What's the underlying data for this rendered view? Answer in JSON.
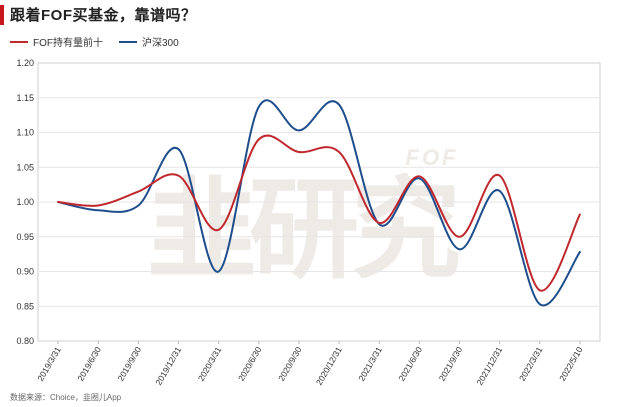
{
  "header": {
    "title": "跟着FOF买基金，靠谱吗？",
    "accent_color": "#c8161d"
  },
  "source": {
    "text": "数据来源：Choice，韭圈儿App"
  },
  "watermark": {
    "large": "韭研究",
    "small": "FOF"
  },
  "chart_data": {
    "type": "line",
    "categories": [
      "2019/3/31",
      "2019/6/30",
      "2019/9/30",
      "2019/12/31",
      "2020/3/31",
      "2020/6/30",
      "2020/9/30",
      "2020/12/31",
      "2021/3/31",
      "2021/6/30",
      "2021/9/30",
      "2021/12/31",
      "2022/3/31",
      "2022/5/10"
    ],
    "series": [
      {
        "name": "FOF持有量前十",
        "color": "#c0282e",
        "values": [
          1.0,
          0.995,
          1.015,
          1.038,
          0.96,
          1.09,
          1.072,
          1.072,
          0.97,
          1.037,
          0.95,
          1.038,
          0.873,
          0.982
        ]
      },
      {
        "name": "沪深300",
        "color": "#1f4e8c",
        "values": [
          1.0,
          0.988,
          0.995,
          1.076,
          0.9,
          1.137,
          1.103,
          1.14,
          0.968,
          1.034,
          0.932,
          1.016,
          0.853,
          0.928
        ]
      }
    ],
    "ylim": [
      0.8,
      1.2
    ],
    "yticks": [
      "0.80",
      "0.85",
      "0.90",
      "0.95",
      "1.00",
      "1.05",
      "1.10",
      "1.15",
      "1.20"
    ],
    "grid": true,
    "legend_position": "top-left",
    "title": "",
    "xlabel": "",
    "ylabel": ""
  }
}
